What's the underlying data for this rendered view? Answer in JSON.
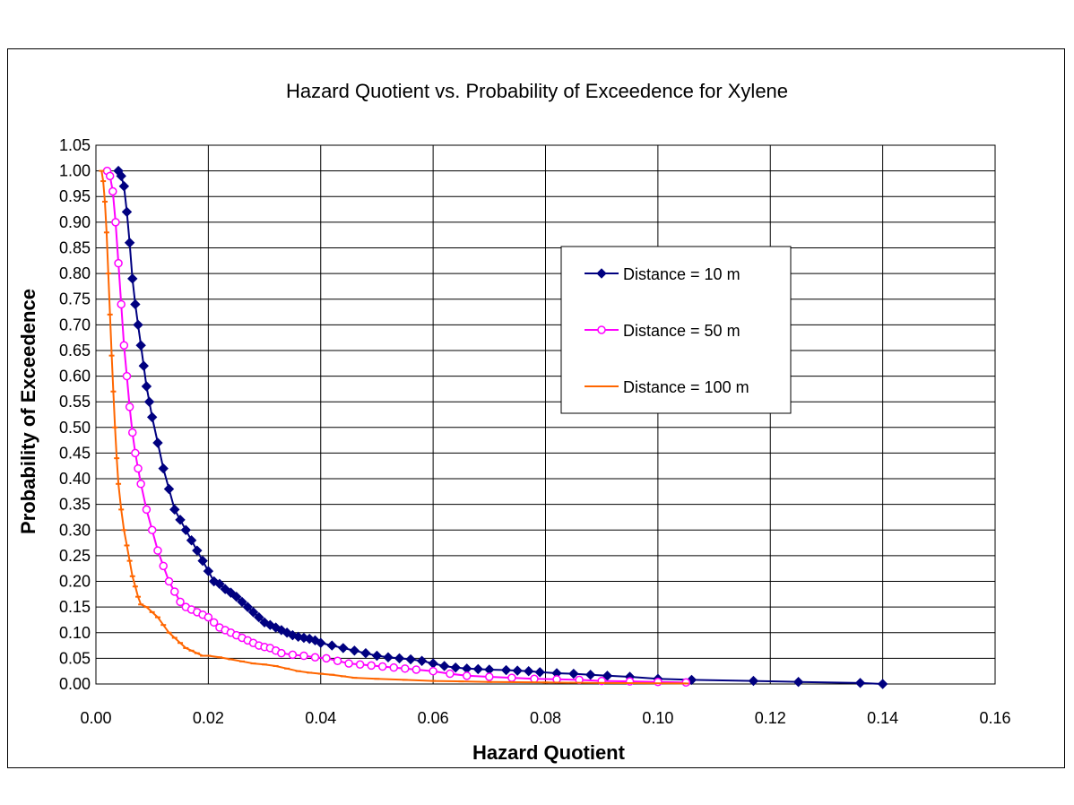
{
  "chart_data": {
    "type": "line",
    "title": "Hazard Quotient vs. Probability of Exceedence for Xylene",
    "xlabel": "Hazard Quotient",
    "ylabel": "Probability of Exceedence",
    "xlim": [
      0,
      0.16
    ],
    "ylim": [
      0,
      1.05
    ],
    "xticks": [
      "0.00",
      "0.02",
      "0.04",
      "0.06",
      "0.08",
      "0.10",
      "0.12",
      "0.14",
      "0.16"
    ],
    "yticks": [
      "0.00",
      "0.05",
      "0.10",
      "0.15",
      "0.20",
      "0.25",
      "0.30",
      "0.35",
      "0.40",
      "0.45",
      "0.50",
      "0.55",
      "0.60",
      "0.65",
      "0.70",
      "0.75",
      "0.80",
      "0.85",
      "0.90",
      "0.95",
      "1.00",
      "1.05"
    ],
    "grid": true,
    "legend_position": "upper-right",
    "series": [
      {
        "name": "Distance = 10 m",
        "color": "#000080",
        "marker": "diamond",
        "x": [
          0.004,
          0.0045,
          0.005,
          0.0055,
          0.006,
          0.0065,
          0.007,
          0.0075,
          0.008,
          0.0085,
          0.009,
          0.0095,
          0.01,
          0.011,
          0.012,
          0.013,
          0.014,
          0.015,
          0.016,
          0.017,
          0.018,
          0.019,
          0.02,
          0.021,
          0.022,
          0.023,
          0.024,
          0.025,
          0.026,
          0.027,
          0.028,
          0.029,
          0.03,
          0.031,
          0.032,
          0.033,
          0.034,
          0.035,
          0.036,
          0.037,
          0.038,
          0.039,
          0.04,
          0.042,
          0.044,
          0.046,
          0.048,
          0.05,
          0.052,
          0.054,
          0.056,
          0.058,
          0.06,
          0.062,
          0.064,
          0.066,
          0.068,
          0.07,
          0.073,
          0.075,
          0.077,
          0.079,
          0.082,
          0.085,
          0.088,
          0.091,
          0.095,
          0.1,
          0.106,
          0.117,
          0.125,
          0.136,
          0.14
        ],
        "y": [
          1.0,
          0.99,
          0.97,
          0.92,
          0.86,
          0.79,
          0.74,
          0.7,
          0.66,
          0.62,
          0.58,
          0.55,
          0.52,
          0.47,
          0.42,
          0.38,
          0.34,
          0.32,
          0.3,
          0.28,
          0.26,
          0.24,
          0.22,
          0.2,
          0.195,
          0.185,
          0.178,
          0.17,
          0.16,
          0.15,
          0.14,
          0.13,
          0.12,
          0.115,
          0.11,
          0.105,
          0.1,
          0.095,
          0.092,
          0.09,
          0.088,
          0.085,
          0.08,
          0.075,
          0.07,
          0.065,
          0.06,
          0.055,
          0.052,
          0.05,
          0.048,
          0.045,
          0.04,
          0.035,
          0.032,
          0.03,
          0.029,
          0.028,
          0.027,
          0.026,
          0.025,
          0.023,
          0.021,
          0.02,
          0.018,
          0.016,
          0.014,
          0.01,
          0.008,
          0.006,
          0.004,
          0.002,
          0.0
        ]
      },
      {
        "name": "Distance = 50 m",
        "color": "#ff00ff",
        "marker": "circle",
        "x": [
          0.002,
          0.0025,
          0.003,
          0.0035,
          0.004,
          0.0045,
          0.005,
          0.0055,
          0.006,
          0.0065,
          0.007,
          0.0075,
          0.008,
          0.009,
          0.01,
          0.011,
          0.012,
          0.013,
          0.014,
          0.015,
          0.016,
          0.017,
          0.018,
          0.019,
          0.02,
          0.021,
          0.022,
          0.023,
          0.024,
          0.025,
          0.026,
          0.027,
          0.028,
          0.029,
          0.03,
          0.031,
          0.032,
          0.033,
          0.035,
          0.037,
          0.039,
          0.041,
          0.043,
          0.045,
          0.047,
          0.049,
          0.051,
          0.053,
          0.055,
          0.057,
          0.06,
          0.063,
          0.066,
          0.07,
          0.074,
          0.078,
          0.082,
          0.086,
          0.09,
          0.095,
          0.1,
          0.105
        ],
        "y": [
          1.0,
          0.99,
          0.96,
          0.9,
          0.82,
          0.74,
          0.66,
          0.6,
          0.54,
          0.49,
          0.45,
          0.42,
          0.39,
          0.34,
          0.3,
          0.26,
          0.23,
          0.2,
          0.18,
          0.16,
          0.15,
          0.145,
          0.14,
          0.135,
          0.13,
          0.12,
          0.11,
          0.105,
          0.1,
          0.095,
          0.09,
          0.085,
          0.08,
          0.075,
          0.072,
          0.07,
          0.065,
          0.06,
          0.057,
          0.055,
          0.052,
          0.05,
          0.045,
          0.04,
          0.038,
          0.036,
          0.034,
          0.032,
          0.03,
          0.028,
          0.025,
          0.02,
          0.016,
          0.014,
          0.012,
          0.01,
          0.009,
          0.008,
          0.006,
          0.005,
          0.004,
          0.003
        ]
      },
      {
        "name": "Distance = 100 m",
        "color": "#ff6600",
        "marker": "dash",
        "x": [
          0.001,
          0.0013,
          0.0016,
          0.0019,
          0.0022,
          0.0025,
          0.0028,
          0.0031,
          0.0034,
          0.0037,
          0.004,
          0.0045,
          0.005,
          0.0055,
          0.006,
          0.0065,
          0.007,
          0.0075,
          0.008,
          0.009,
          0.01,
          0.011,
          0.012,
          0.013,
          0.014,
          0.015,
          0.016,
          0.017,
          0.018,
          0.019,
          0.02,
          0.022,
          0.024,
          0.026,
          0.028,
          0.03,
          0.032,
          0.034,
          0.036,
          0.038,
          0.04,
          0.042,
          0.044,
          0.046,
          0.05,
          0.055,
          0.06,
          0.065,
          0.07,
          0.08,
          0.09,
          0.105
        ],
        "y": [
          1.0,
          0.98,
          0.94,
          0.88,
          0.8,
          0.72,
          0.64,
          0.57,
          0.5,
          0.44,
          0.39,
          0.34,
          0.3,
          0.27,
          0.24,
          0.21,
          0.19,
          0.17,
          0.155,
          0.15,
          0.14,
          0.13,
          0.115,
          0.1,
          0.09,
          0.08,
          0.07,
          0.065,
          0.06,
          0.055,
          0.055,
          0.052,
          0.048,
          0.044,
          0.04,
          0.038,
          0.035,
          0.03,
          0.025,
          0.022,
          0.02,
          0.018,
          0.015,
          0.012,
          0.01,
          0.008,
          0.006,
          0.005,
          0.004,
          0.003,
          0.002,
          0.001
        ]
      }
    ]
  }
}
